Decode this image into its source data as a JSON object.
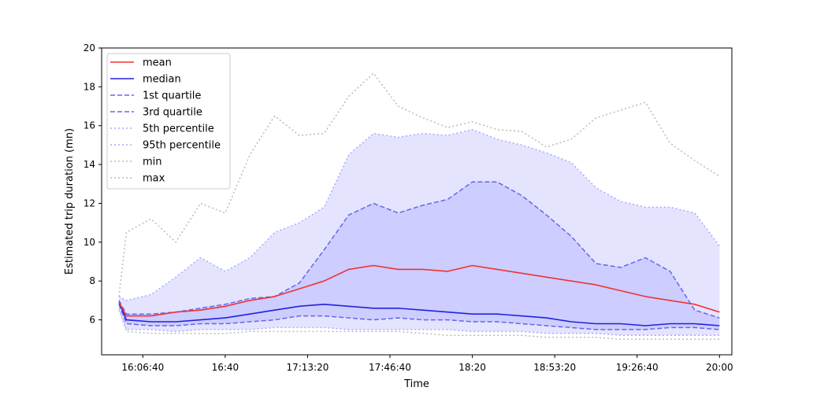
{
  "chart_data": {
    "type": "line",
    "title": "",
    "xlabel": "Time",
    "ylabel": "Estimated trip duration (mn)",
    "xlim": [
      "15:50",
      "20:05"
    ],
    "ylim": [
      4.2,
      20
    ],
    "x_ticks": [
      "16:06:40",
      "16:40",
      "17:13:20",
      "17:46:40",
      "18:20",
      "18:53:20",
      "19:26:40",
      "20:00"
    ],
    "y_ticks": [
      6,
      8,
      10,
      12,
      14,
      16,
      18,
      20
    ],
    "grid": false,
    "legend_position": "top-left",
    "colors": {
      "mean": "#ee3333",
      "median": "#2222dd",
      "quartile": "#6666ee",
      "percentile": "#aaaaff",
      "minmax": "#bbbbbb",
      "band_outer": "#e4e4ff",
      "band_inner": "#cdcdff"
    },
    "x": [
      "15:57",
      "16:00",
      "16:10",
      "16:20",
      "16:30",
      "16:40",
      "16:50",
      "17:00",
      "17:10",
      "17:20",
      "17:30",
      "17:40",
      "17:50",
      "18:00",
      "18:10",
      "18:20",
      "18:30",
      "18:40",
      "18:50",
      "19:00",
      "19:10",
      "19:20",
      "19:30",
      "19:40",
      "19:50",
      "20:00"
    ],
    "series": [
      {
        "name": "mean",
        "style": "solid",
        "values": [
          6.9,
          6.2,
          6.2,
          6.4,
          6.5,
          6.7,
          7.0,
          7.2,
          7.6,
          8.0,
          8.6,
          8.8,
          8.6,
          8.6,
          8.5,
          8.8,
          8.6,
          8.4,
          8.2,
          8.0,
          7.8,
          7.5,
          7.2,
          7.0,
          6.8,
          6.4
        ]
      },
      {
        "name": "median",
        "style": "solid",
        "values": [
          6.9,
          6.0,
          5.9,
          5.9,
          6.0,
          6.1,
          6.3,
          6.5,
          6.7,
          6.8,
          6.7,
          6.6,
          6.6,
          6.5,
          6.4,
          6.3,
          6.3,
          6.2,
          6.1,
          5.9,
          5.8,
          5.8,
          5.7,
          5.8,
          5.8,
          5.7
        ]
      },
      {
        "name": "1st quartile",
        "style": "dashed",
        "values": [
          6.8,
          5.8,
          5.7,
          5.7,
          5.8,
          5.8,
          5.9,
          6.0,
          6.2,
          6.2,
          6.1,
          6.0,
          6.1,
          6.0,
          6.0,
          5.9,
          5.9,
          5.8,
          5.7,
          5.6,
          5.5,
          5.5,
          5.5,
          5.6,
          5.6,
          5.5
        ]
      },
      {
        "name": "3rd quartile",
        "style": "dashed",
        "values": [
          7.0,
          6.3,
          6.3,
          6.4,
          6.6,
          6.8,
          7.1,
          7.2,
          7.9,
          9.6,
          11.4,
          12.0,
          11.5,
          11.9,
          12.2,
          13.1,
          13.1,
          12.4,
          11.4,
          10.3,
          8.9,
          8.7,
          9.2,
          8.5,
          6.5,
          6.1
        ]
      },
      {
        "name": "5th percentile",
        "style": "dotted",
        "values": [
          6.6,
          5.5,
          5.5,
          5.4,
          5.5,
          5.5,
          5.5,
          5.6,
          5.6,
          5.6,
          5.5,
          5.5,
          5.5,
          5.5,
          5.5,
          5.4,
          5.4,
          5.4,
          5.3,
          5.3,
          5.3,
          5.2,
          5.2,
          5.2,
          5.2,
          5.2
        ]
      },
      {
        "name": "95th percentile",
        "style": "dotted",
        "values": [
          7.2,
          7.0,
          7.3,
          8.2,
          9.2,
          8.5,
          9.2,
          10.5,
          11.0,
          11.8,
          14.5,
          15.6,
          15.4,
          15.6,
          15.5,
          15.8,
          15.3,
          15.0,
          14.6,
          14.1,
          12.8,
          12.1,
          11.8,
          11.8,
          11.5,
          9.8
        ]
      },
      {
        "name": "min",
        "style": "dotted",
        "values": [
          6.5,
          5.4,
          5.3,
          5.3,
          5.3,
          5.3,
          5.4,
          5.4,
          5.4,
          5.4,
          5.4,
          5.4,
          5.4,
          5.3,
          5.2,
          5.2,
          5.2,
          5.2,
          5.1,
          5.1,
          5.1,
          5.0,
          5.0,
          5.0,
          5.0,
          5.0
        ]
      },
      {
        "name": "max",
        "style": "dotted",
        "values": [
          7.2,
          10.5,
          11.2,
          10.0,
          12.0,
          11.5,
          14.5,
          16.5,
          15.5,
          15.6,
          17.5,
          18.7,
          17.0,
          16.4,
          15.9,
          16.2,
          15.8,
          15.7,
          14.9,
          15.3,
          16.4,
          16.8,
          17.2,
          15.1,
          14.2,
          13.4
        ]
      }
    ]
  }
}
